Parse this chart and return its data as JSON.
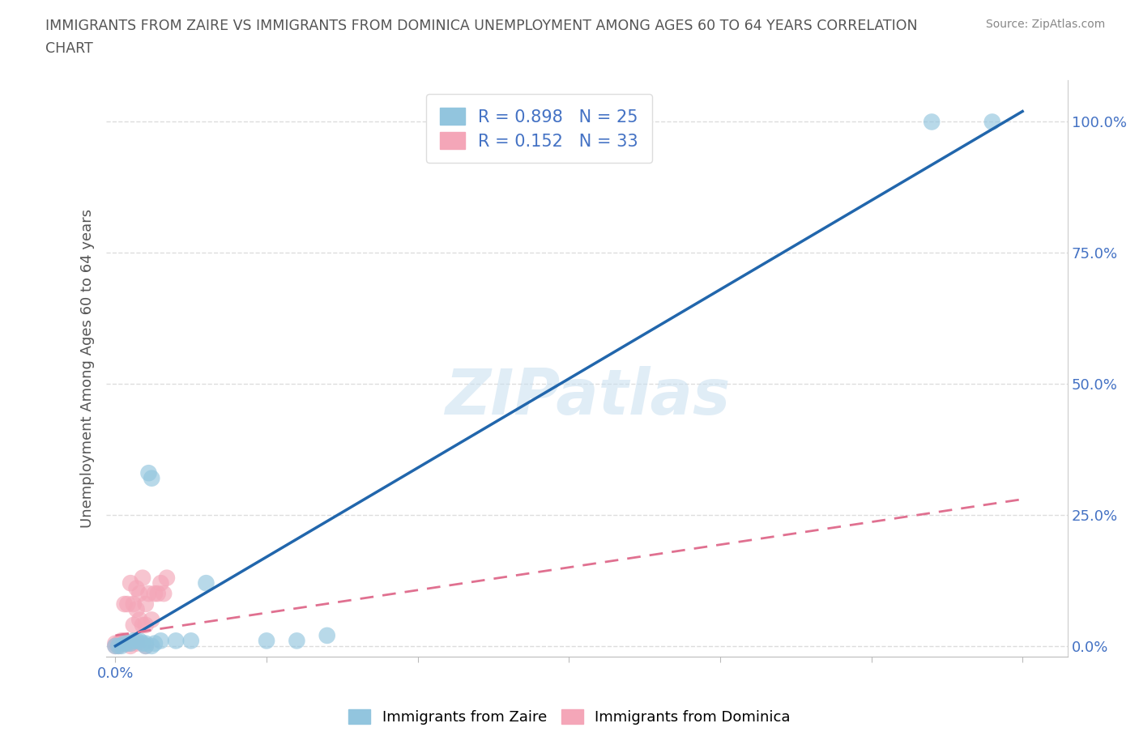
{
  "title_line1": "IMMIGRANTS FROM ZAIRE VS IMMIGRANTS FROM DOMINICA UNEMPLOYMENT AMONG AGES 60 TO 64 YEARS CORRELATION",
  "title_line2": "CHART",
  "source": "Source: ZipAtlas.com",
  "x_tick_positions": [
    0.0,
    0.05,
    0.1,
    0.15,
    0.2,
    0.25,
    0.3
  ],
  "x_tick_labels_shown": {
    "0.0": "0.0%"
  },
  "ylabel_ticks": [
    0.0,
    0.25,
    0.5,
    0.75,
    1.0
  ],
  "ylabel_tick_labels": [
    "0.0%",
    "25.0%",
    "50.0%",
    "75.0%",
    "100.0%"
  ],
  "xlim": [
    -0.003,
    0.315
  ],
  "ylim": [
    -0.02,
    1.08
  ],
  "zaire_color": "#92c5de",
  "zaire_line_color": "#2166ac",
  "dominica_color": "#f4a6b8",
  "dominica_line_color": "#e07090",
  "zaire_R": 0.898,
  "zaire_N": 25,
  "dominica_R": 0.152,
  "dominica_N": 33,
  "watermark": "ZIPatlas",
  "ylabel": "Unemployment Among Ages 60 to 64 years",
  "zaire_scatter_x": [
    0.0,
    0.001,
    0.002,
    0.003,
    0.004,
    0.005,
    0.006,
    0.007,
    0.008,
    0.009,
    0.01,
    0.011,
    0.012,
    0.013,
    0.015,
    0.02,
    0.025,
    0.03,
    0.27,
    0.29,
    0.01,
    0.012,
    0.05,
    0.06,
    0.07
  ],
  "zaire_scatter_y": [
    0.0,
    0.0,
    0.0,
    0.005,
    0.005,
    0.005,
    0.01,
    0.01,
    0.01,
    0.005,
    0.005,
    0.33,
    0.32,
    0.005,
    0.01,
    0.01,
    0.01,
    0.12,
    1.0,
    1.0,
    0.0,
    0.0,
    0.01,
    0.01,
    0.02
  ],
  "dominica_scatter_x": [
    0.0,
    0.0,
    0.001,
    0.001,
    0.002,
    0.002,
    0.003,
    0.003,
    0.003,
    0.004,
    0.004,
    0.005,
    0.005,
    0.005,
    0.006,
    0.006,
    0.007,
    0.007,
    0.007,
    0.008,
    0.008,
    0.009,
    0.009,
    0.01,
    0.01,
    0.01,
    0.011,
    0.012,
    0.013,
    0.014,
    0.015,
    0.016,
    0.017
  ],
  "dominica_scatter_y": [
    0.0,
    0.005,
    0.0,
    0.005,
    0.005,
    0.01,
    0.005,
    0.01,
    0.08,
    0.005,
    0.08,
    0.0,
    0.005,
    0.12,
    0.04,
    0.08,
    0.005,
    0.07,
    0.11,
    0.05,
    0.1,
    0.04,
    0.13,
    0.0,
    0.04,
    0.08,
    0.1,
    0.05,
    0.1,
    0.1,
    0.12,
    0.1,
    0.13
  ],
  "zaire_regline_x": [
    0.0,
    0.3
  ],
  "zaire_regline_y": [
    0.0,
    1.02
  ],
  "dominica_regline_x": [
    0.0,
    0.3
  ],
  "dominica_regline_y": [
    0.02,
    0.28
  ]
}
